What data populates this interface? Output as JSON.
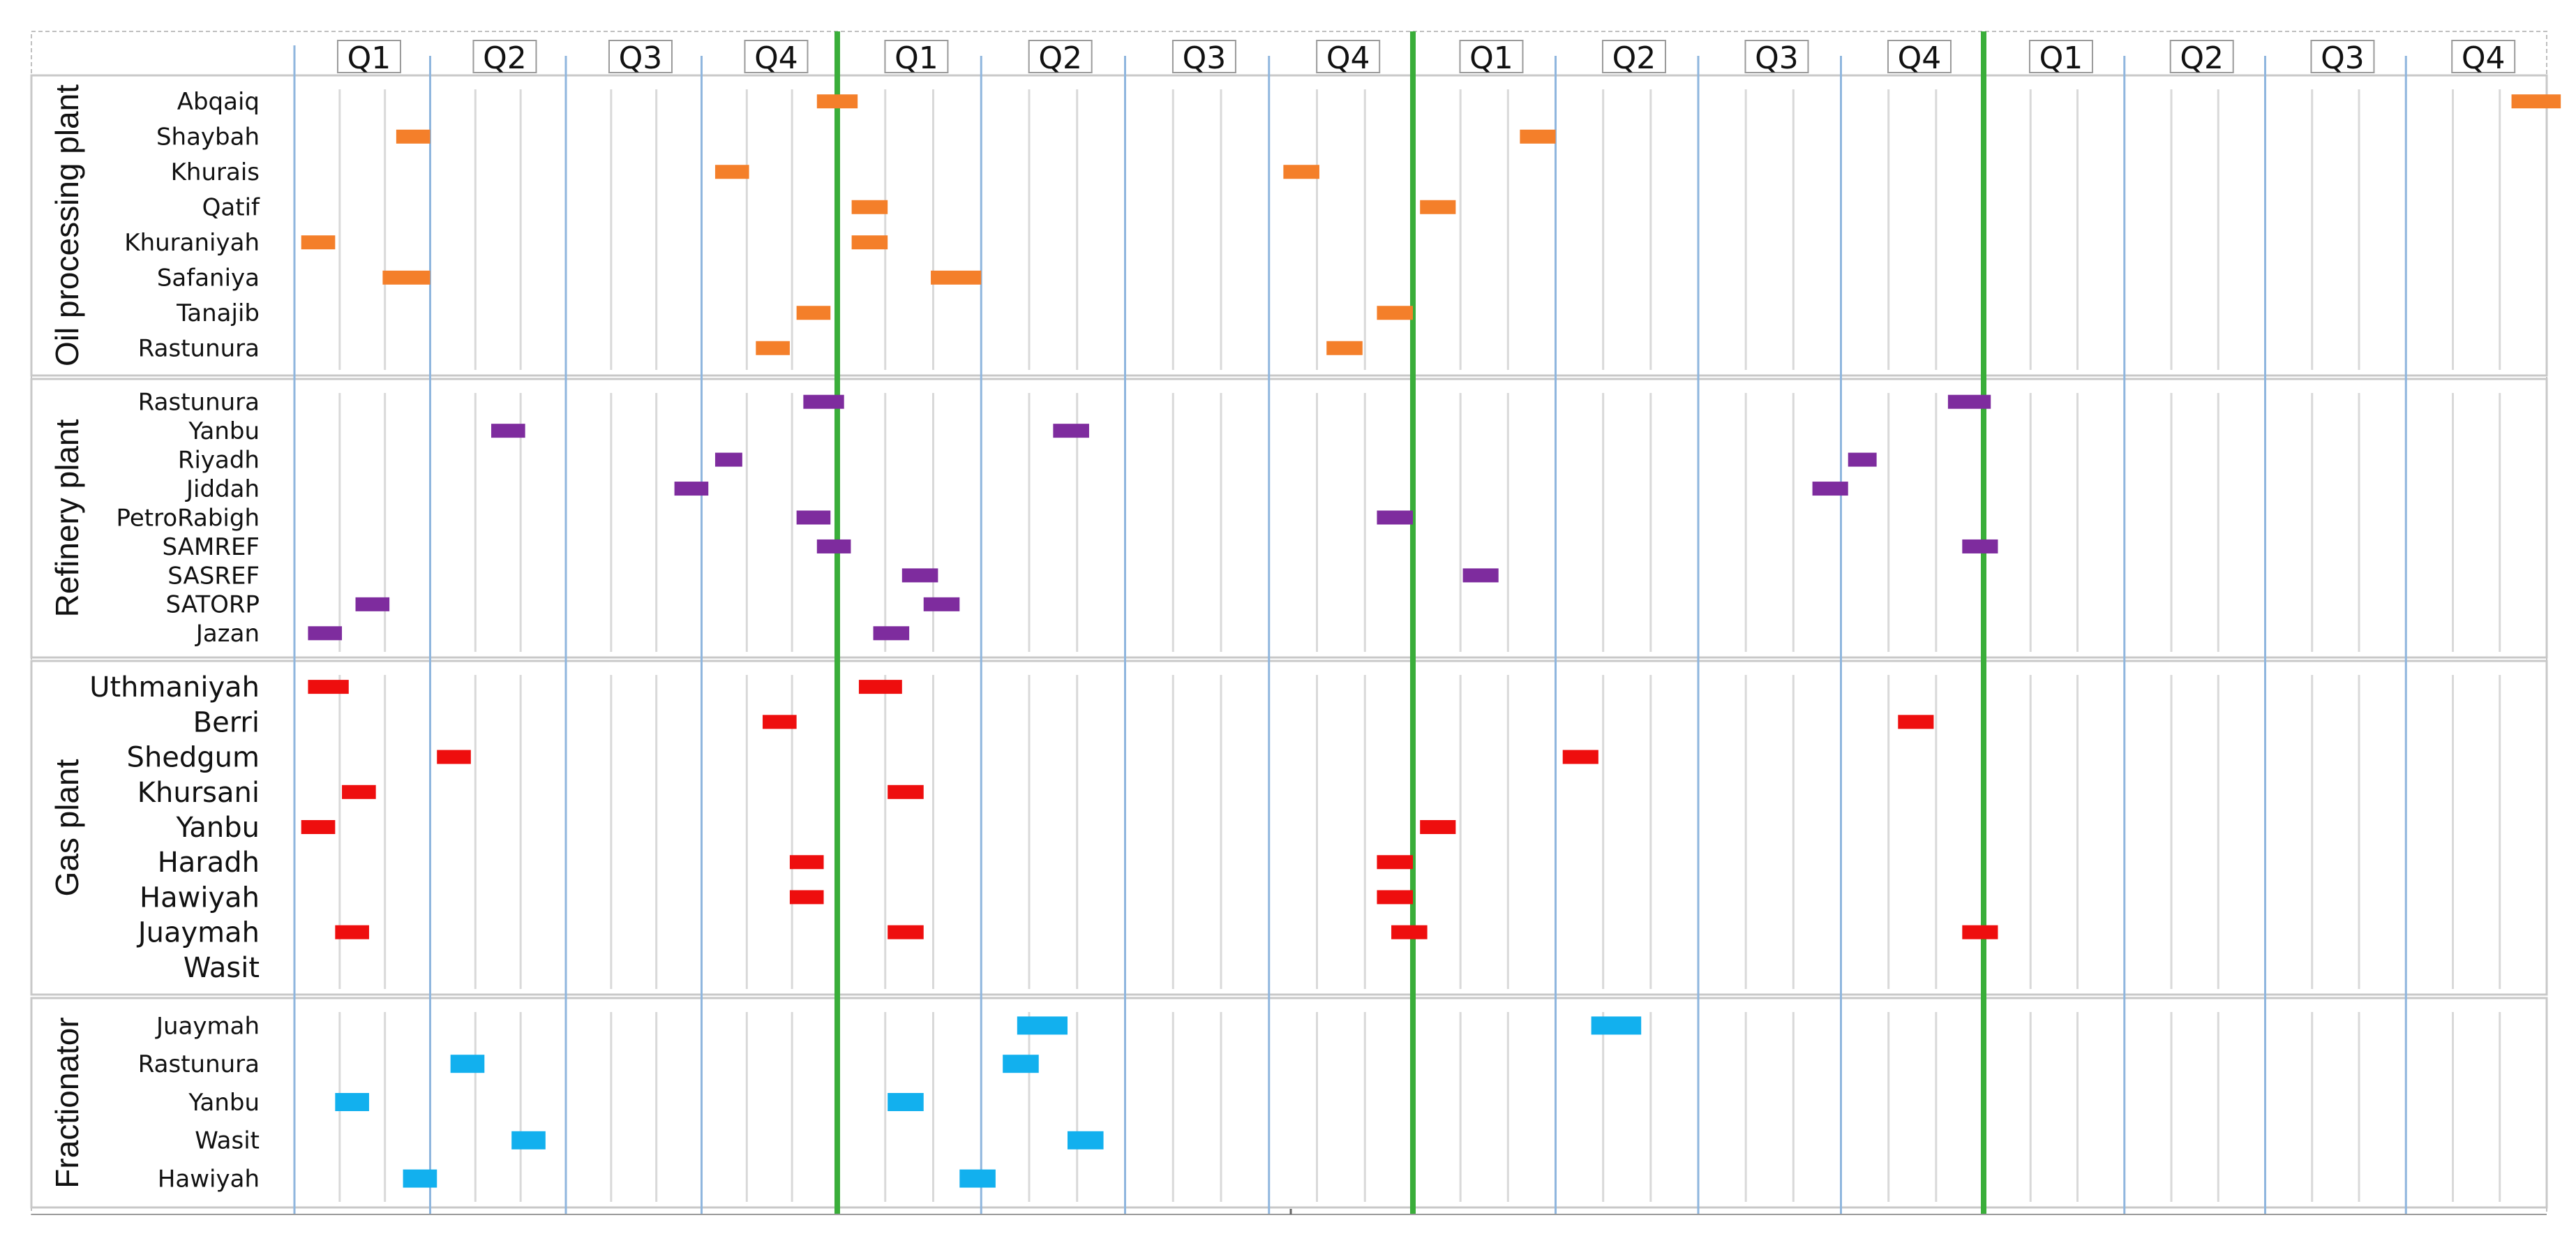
{
  "chart_data": {
    "type": "gantt",
    "title": "",
    "xlabel": "",
    "ylabel": "",
    "years": 4,
    "quarter_labels": [
      "Q1",
      "Q2",
      "Q3",
      "Q4"
    ],
    "grid": true,
    "colors": {
      "Oil processing plant": "#F47F2A",
      "Refinery plant": "#7E2C9E",
      "Gas plant": "#EE0E0E",
      "Fractionator": "#12B0EE",
      "year_separator": "#3AAE3A",
      "quarter_line": "#8FB6DE",
      "minor_grid": "#D9D9D9"
    },
    "groups": [
      {
        "name": "Oil processing plant",
        "plants": [
          {
            "name": "Abqaiq",
            "tasks": [
              [
                3,
                3.75,
                0.35
              ],
              [
                0,
                3.85,
                0.3
              ]
            ]
          },
          {
            "name": "Shaybah",
            "tasks": [
              [
                0,
                0.75,
                0.25
              ],
              [
                2,
                0.75,
                0.25
              ]
            ]
          },
          {
            "name": "Khurais",
            "tasks": [
              [
                0,
                3.1,
                0.25
              ],
              [
                1,
                3.1,
                0.25
              ]
            ]
          },
          {
            "name": "Qatif",
            "tasks": [
              [
                1,
                0.1,
                0.25
              ],
              [
                2,
                0.05,
                0.25
              ]
            ]
          },
          {
            "name": "Khuraniyah",
            "tasks": [
              [
                0,
                0.05,
                0.25
              ],
              [
                1,
                0.1,
                0.25
              ]
            ]
          },
          {
            "name": "Safaniya",
            "tasks": [
              [
                0,
                0.65,
                0.35
              ],
              [
                1,
                0.65,
                0.35
              ]
            ]
          },
          {
            "name": "Tanajib",
            "tasks": [
              [
                0,
                3.7,
                0.25
              ],
              [
                1,
                3.75,
                0.25
              ]
            ]
          },
          {
            "name": "Rastunura",
            "tasks": [
              [
                0,
                3.4,
                0.25
              ],
              [
                1,
                3.4,
                0.25
              ]
            ]
          }
        ]
      },
      {
        "name": "Refinery plant",
        "plants": [
          {
            "name": "Rastunura",
            "tasks": [
              [
                0,
                3.75,
                0.3
              ],
              [
                2,
                3.75,
                0.3
              ]
            ]
          },
          {
            "name": "Yanbu",
            "tasks": [
              [
                0,
                1.45,
                0.25
              ],
              [
                1,
                1.5,
                0.25
              ]
            ]
          },
          {
            "name": "Riyadh",
            "tasks": [
              [
                0,
                3.1,
                0.2
              ],
              [
                2,
                3.05,
                0.2
              ]
            ]
          },
          {
            "name": "Jiddah",
            "tasks": [
              [
                0,
                2.8,
                0.25
              ],
              [
                2,
                2.8,
                0.25
              ]
            ]
          },
          {
            "name": "PetroRabigh",
            "tasks": [
              [
                0,
                3.7,
                0.25
              ],
              [
                1,
                3.75,
                0.25
              ]
            ]
          },
          {
            "name": "SAMREF",
            "tasks": [
              [
                0,
                3.85,
                0.25
              ],
              [
                2,
                3.85,
                0.25
              ]
            ]
          },
          {
            "name": "SASREF",
            "tasks": [
              [
                1,
                0.45,
                0.25
              ],
              [
                2,
                0.35,
                0.25
              ]
            ]
          },
          {
            "name": "SATORP",
            "tasks": [
              [
                0,
                0.45,
                0.25
              ],
              [
                1,
                0.6,
                0.25
              ]
            ]
          },
          {
            "name": "Jazan",
            "tasks": [
              [
                0,
                0.1,
                0.25
              ],
              [
                1,
                0.25,
                0.25
              ]
            ]
          }
        ]
      },
      {
        "name": "Gas plant",
        "plants": [
          {
            "name": "Uthmaniyah",
            "tasks": [
              [
                0,
                0.1,
                0.3
              ],
              [
                1,
                0.15,
                0.3
              ]
            ]
          },
          {
            "name": "Berri",
            "tasks": [
              [
                0,
                3.45,
                0.25
              ],
              [
                2,
                3.4,
                0.25
              ]
            ]
          },
          {
            "name": "Shedgum",
            "tasks": [
              [
                0,
                1.05,
                0.25
              ],
              [
                2,
                1.05,
                0.25
              ]
            ]
          },
          {
            "name": "Khursani",
            "tasks": [
              [
                0,
                0.35,
                0.25
              ],
              [
                1,
                0.35,
                0.25
              ]
            ]
          },
          {
            "name": "Yanbu",
            "tasks": [
              [
                0,
                0.05,
                0.25
              ],
              [
                2,
                0.05,
                0.25
              ]
            ]
          },
          {
            "name": "Haradh",
            "tasks": [
              [
                0,
                3.65,
                0.25
              ],
              [
                1,
                3.75,
                0.25
              ]
            ]
          },
          {
            "name": "Hawiyah",
            "tasks": [
              [
                0,
                3.65,
                0.25
              ],
              [
                1,
                3.75,
                0.25
              ]
            ]
          },
          {
            "name": "Juaymah",
            "tasks": [
              [
                0,
                0.3,
                0.25
              ],
              [
                1,
                3.85,
                0.25
              ],
              [
                1,
                0.35,
                0.25
              ],
              [
                2,
                3.85,
                0.25
              ]
            ]
          },
          {
            "name": "Wasit",
            "tasks": []
          }
        ]
      },
      {
        "name": "Fractionator",
        "plants": [
          {
            "name": "Juaymah",
            "tasks": [
              [
                1,
                1.25,
                0.35
              ],
              [
                2,
                1.25,
                0.35
              ]
            ]
          },
          {
            "name": "Rastunura",
            "tasks": [
              [
                0,
                1.15,
                0.25
              ],
              [
                1,
                1.15,
                0.25
              ]
            ]
          },
          {
            "name": "Yanbu",
            "tasks": [
              [
                0,
                0.3,
                0.25
              ],
              [
                1,
                0.35,
                0.25
              ]
            ]
          },
          {
            "name": "Wasit",
            "tasks": [
              [
                0,
                1.6,
                0.25
              ],
              [
                1,
                1.6,
                0.25
              ]
            ]
          },
          {
            "name": "Hawiyah",
            "tasks": [
              [
                0,
                0.8,
                0.25
              ],
              [
                1,
                0.85,
                0.25
              ]
            ]
          }
        ]
      }
    ]
  }
}
